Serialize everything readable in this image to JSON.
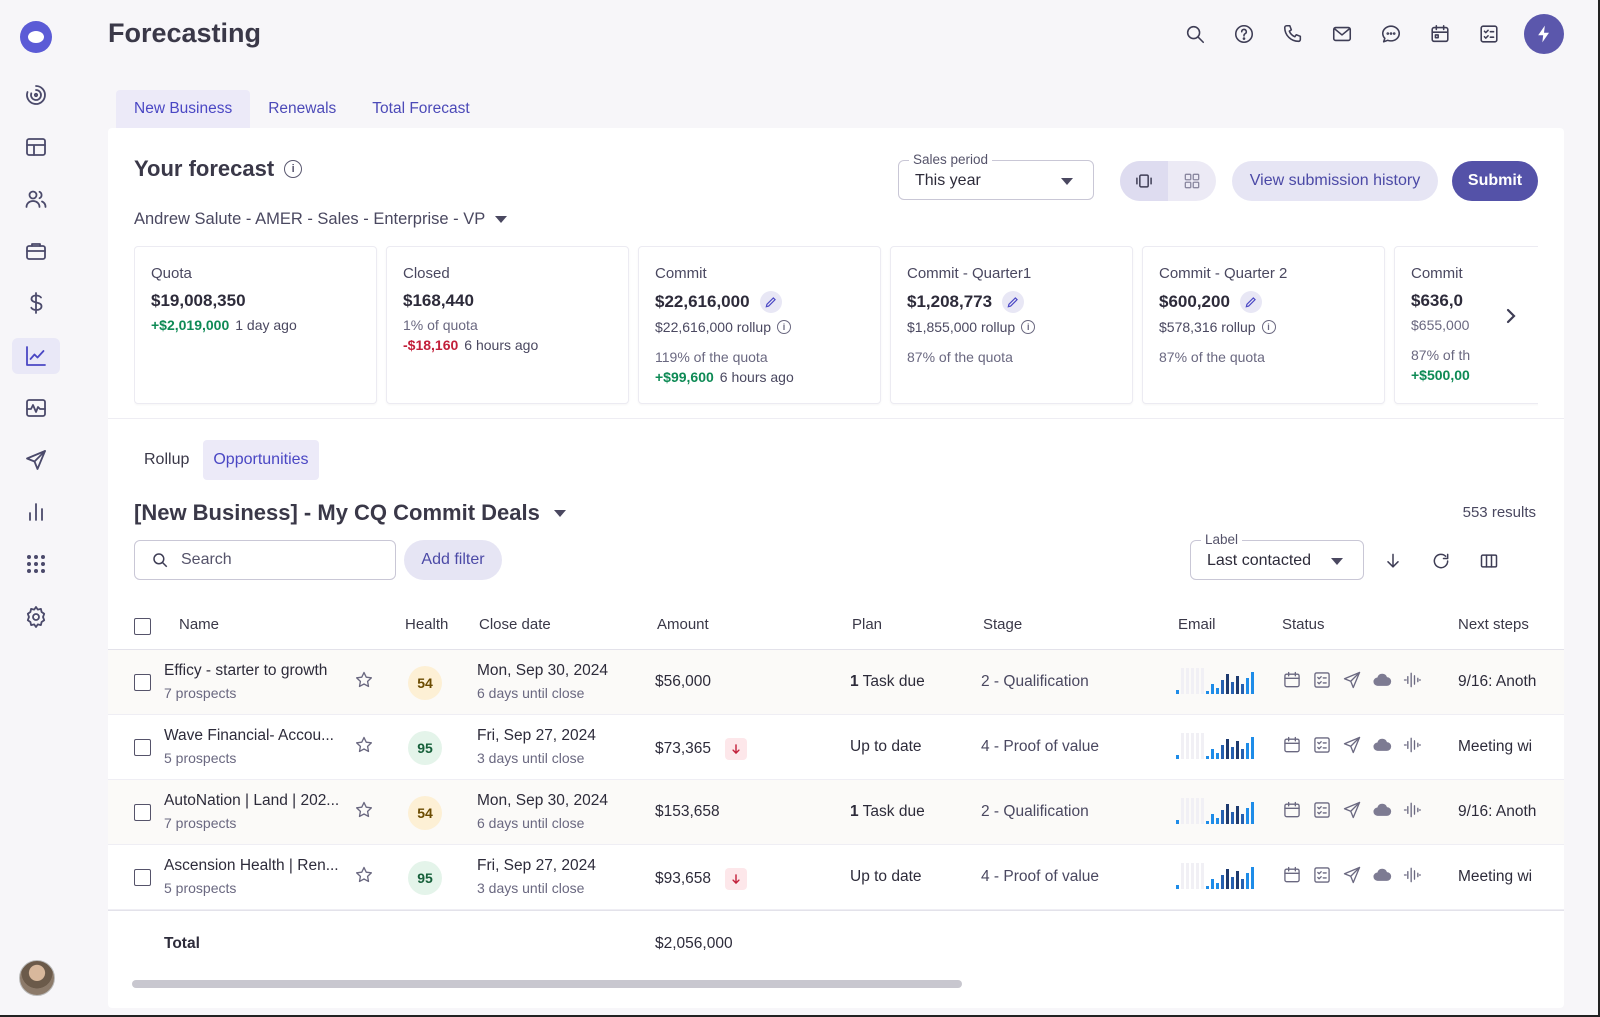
{
  "app": {
    "title": "Forecasting"
  },
  "sidebar": {
    "items": [
      {
        "icon": "dashboard-gauge-icon",
        "active": false
      },
      {
        "icon": "layout-icon",
        "active": false
      },
      {
        "icon": "people-icon",
        "active": false
      },
      {
        "icon": "briefcase-icon",
        "active": false
      },
      {
        "icon": "dollar-icon",
        "active": false
      },
      {
        "icon": "trend-chart-icon",
        "active": true
      },
      {
        "icon": "pulse-icon",
        "active": false
      },
      {
        "icon": "send-icon",
        "active": false
      },
      {
        "icon": "bar-chart-icon",
        "active": false
      },
      {
        "icon": "apps-grid-icon",
        "active": false
      },
      {
        "icon": "gear-icon",
        "active": false
      }
    ]
  },
  "header": {
    "icons": [
      "search-icon",
      "help-icon",
      "phone-icon",
      "mail-icon",
      "chat-icon",
      "calendar-icon",
      "tasks-icon",
      "bolt-icon"
    ]
  },
  "tabs": [
    {
      "label": "New Business",
      "active": true
    },
    {
      "label": "Renewals",
      "active": false
    },
    {
      "label": "Total Forecast",
      "active": false
    }
  ],
  "forecast": {
    "title": "Your forecast",
    "owner": "Andrew Salute - AMER - Sales - Enterprise - VP",
    "sales_period_label": "Sales period",
    "sales_period_value": "This year",
    "view_history_label": "View submission history",
    "submit_label": "Submit"
  },
  "cards": [
    {
      "label": "Quota",
      "value": "$19,008,350",
      "delta": "+$2,019,000",
      "delta_time": "1 day ago"
    },
    {
      "label": "Closed",
      "value": "$168,440",
      "pct": "1% of quota",
      "delta": "-$18,160",
      "delta_time": "6 hours ago"
    },
    {
      "label": "Commit",
      "value": "$22,616,000",
      "rollup": "$22,616,000 rollup",
      "pct": "119% of the quota",
      "delta": "+$99,600",
      "delta_time": "6 hours ago"
    },
    {
      "label": "Commit - Quarter1",
      "value": "$1,208,773",
      "rollup": "$1,855,000 rollup",
      "pct": "87% of the quota"
    },
    {
      "label": "Commit - Quarter 2",
      "value": "$600,200",
      "rollup": "$578,316 rollup",
      "pct": "87% of the quota"
    },
    {
      "label": "Commit",
      "value": "$636,0",
      "rollup": "$655,000",
      "pct": "87% of th",
      "delta": "+$500,00"
    }
  ],
  "subtabs": [
    {
      "label": "Rollup",
      "active": false
    },
    {
      "label": "Opportunities",
      "active": true
    }
  ],
  "list": {
    "title": "[New Business] - My CQ Commit Deals",
    "results": "553 results",
    "search_placeholder": "Search",
    "add_filter_label": "Add filter",
    "sort_label": "Label",
    "sort_value": "Last contacted"
  },
  "table": {
    "headers": [
      "Name",
      "Health",
      "Close date",
      "Amount",
      "Plan",
      "Stage",
      "Email",
      "Status",
      "Next steps"
    ],
    "rows": [
      {
        "name": "Efficy - starter to growth",
        "prospects": "7 prospects",
        "health": "54",
        "health_color": "#fdf0d5",
        "health_text": "#6b4b00",
        "close_date": "Mon, Sep 30, 2024",
        "close_sub": "6 days until close",
        "amount": "$56,000",
        "amount_down": false,
        "plan_count": "1",
        "plan": "Task due",
        "stage": "2 - Qualification",
        "next": "9/16: Anoth"
      },
      {
        "name": "Wave Financial- Accou...",
        "prospects": "5 prospects",
        "health": "95",
        "health_color": "#e4f4ea",
        "health_text": "#16603a",
        "close_date": "Fri, Sep 27, 2024",
        "close_sub": "3 days until close",
        "amount": "$73,365",
        "amount_down": true,
        "plan_count": "",
        "plan": "Up to date",
        "stage": "4 - Proof of value",
        "next": "Meeting wi"
      },
      {
        "name": "AutoNation | Land | 202...",
        "prospects": "7 prospects",
        "health": "54",
        "health_color": "#fdf0d5",
        "health_text": "#6b4b00",
        "close_date": "Mon, Sep 30, 2024",
        "close_sub": "6 days until close",
        "amount": "$153,658",
        "amount_down": false,
        "plan_count": "1",
        "plan": "Task due",
        "stage": "2 - Qualification",
        "next": "9/16: Anoth"
      },
      {
        "name": "Ascension Health | Ren...",
        "prospects": "5 prospects",
        "health": "95",
        "health_color": "#e4f4ea",
        "health_text": "#16603a",
        "close_date": "Fri, Sep 27, 2024",
        "close_sub": "3 days until close",
        "amount": "$93,658",
        "amount_down": true,
        "plan_count": "",
        "plan": "Up to date",
        "stage": "4 - Proof of value",
        "next": "Meeting wi"
      }
    ],
    "total_label": "Total",
    "total_amount": "$2,056,000"
  },
  "colors": {
    "accent": "#5452a8",
    "positive": "#0e8a55",
    "negative": "#c21f3a",
    "spark_blue": "#1e8ce8",
    "spark_dark": "#1e3a6e"
  }
}
